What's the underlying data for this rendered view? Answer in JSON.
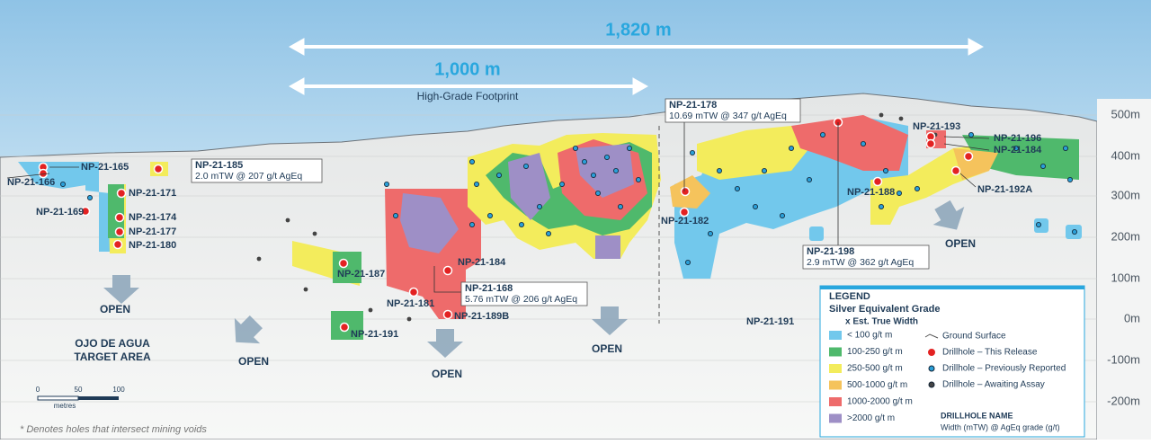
{
  "scale_arrows": {
    "long": "1,820 m",
    "short": "1,000 m",
    "footprint": "High-Grade Footprint"
  },
  "elevations": [
    "500m",
    "400m",
    "300m",
    "200m",
    "100m",
    "0m",
    "-100m",
    "-200m"
  ],
  "drillholes": [
    "NP-21-165",
    "NP-21-166",
    "NP-21-171",
    "NP-21-169",
    "NP-21-174",
    "NP-21-177",
    "NP-21-180",
    "NP-21-187",
    "NP-21-184",
    "NP-21-181",
    "NP-21-189B",
    "NP-21-191",
    "NP-21-182",
    "NP-21-191",
    "NP-21-193",
    "NP-21-196",
    "NP-21-184",
    "NP-21-188",
    "NP-21-192A"
  ],
  "callouts": [
    {
      "hole": "NP-21-185",
      "detail": "2.0 mTW @ 207 g/t AgEq"
    },
    {
      "hole": "NP-21-168",
      "detail": "5.76 mTW @ 206 g/t AgEq"
    },
    {
      "hole": "NP-21-178",
      "detail": "10.69 mTW @ 347 g/t AgEq"
    },
    {
      "hole": "NP-21-198",
      "detail": "2.9 mTW @ 362 g/t AgEq"
    }
  ],
  "open_labels": [
    "OPEN",
    "OPEN",
    "OPEN",
    "OPEN",
    "OPEN"
  ],
  "target_area": [
    "OJO DE AGUA",
    "TARGET AREA"
  ],
  "scale_bar": {
    "ticks": [
      "0",
      "50",
      "100"
    ],
    "unit": "metres"
  },
  "legend": {
    "title": "LEGEND",
    "subtitle": "Silver Equivalent Grade",
    "subtitle2": "x Est. True Width",
    "grades": [
      {
        "label": "< 100 g/t m",
        "color": "#72c8ec"
      },
      {
        "label": "100-250 g/t m",
        "color": "#4fb96c"
      },
      {
        "label": "250-500 g/t m",
        "color": "#f3ec5c"
      },
      {
        "label": "500-1000 g/t m",
        "color": "#f5c35c"
      },
      {
        "label": "1000-2000 g/t m",
        "color": "#ee6b6b"
      },
      {
        "label": ">2000 g/t m",
        "color": "#9e8fc6"
      }
    ],
    "symbols": [
      "Ground Surface",
      "Drillhole – This Release",
      "Drillhole – Previously Reported",
      "Drillhole – Awaiting Assay"
    ],
    "name_key": "DRILLHOLE NAME",
    "name_key_detail": "Width (mTW) @ AgEq grade (g/t)"
  },
  "footnote": "* Denotes holes that intersect mining voids"
}
